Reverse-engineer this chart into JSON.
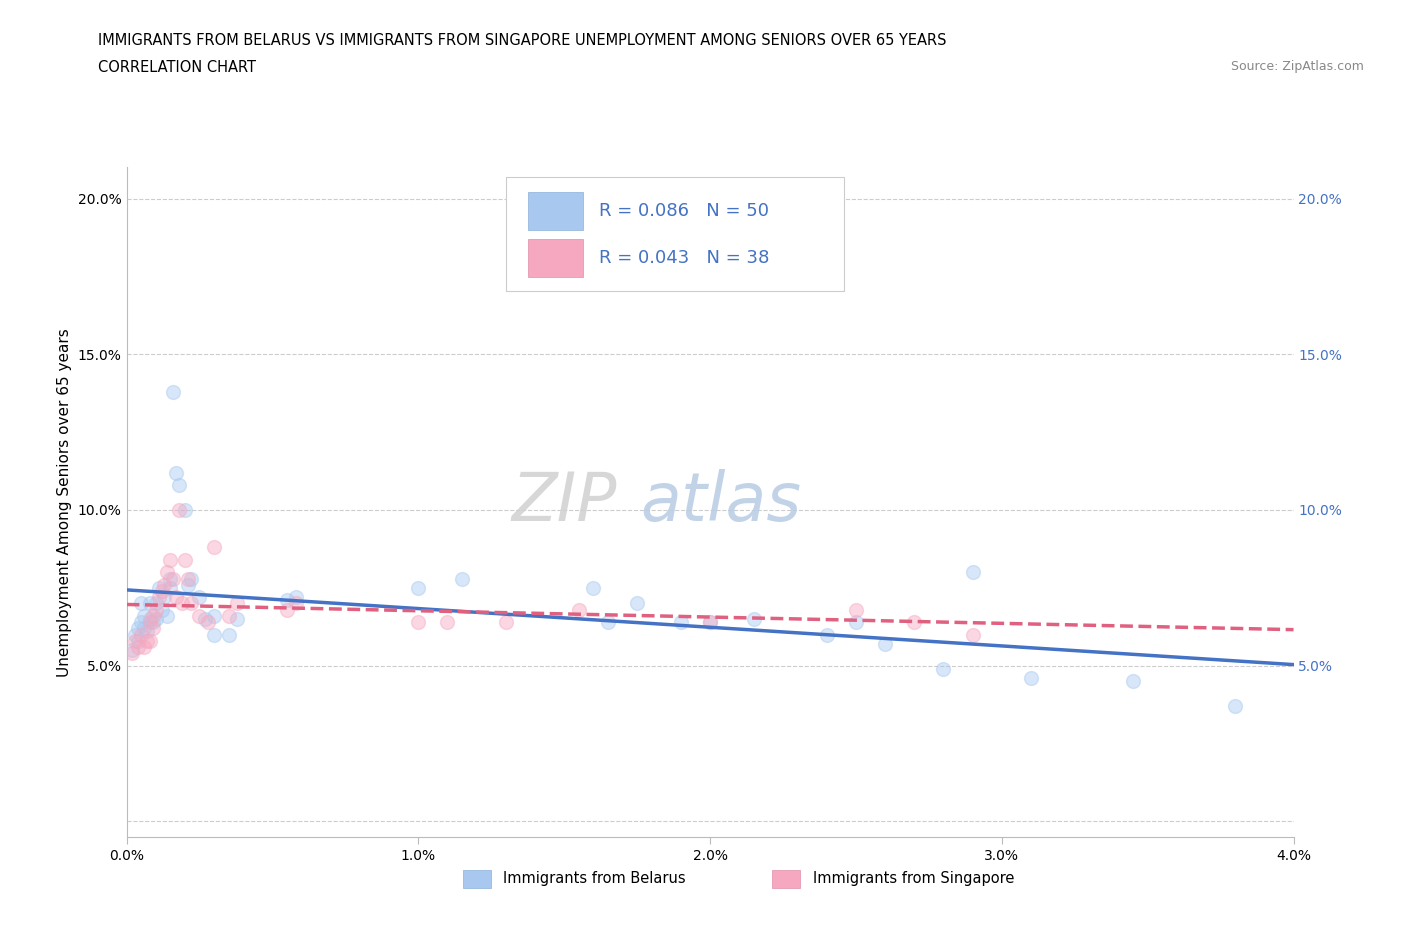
{
  "title_line1": "IMMIGRANTS FROM BELARUS VS IMMIGRANTS FROM SINGAPORE UNEMPLOYMENT AMONG SENIORS OVER 65 YEARS",
  "title_line2": "CORRELATION CHART",
  "source_text": "Source: ZipAtlas.com",
  "ylabel": "Unemployment Among Seniors over 65 years",
  "watermark_part1": "ZIP",
  "watermark_part2": "atlas",
  "xlim": [
    0.0,
    0.04
  ],
  "ylim": [
    -0.005,
    0.21
  ],
  "xticks": [
    0.0,
    0.01,
    0.02,
    0.03,
    0.04
  ],
  "xticklabels": [
    "0.0%",
    "1.0%",
    "2.0%",
    "3.0%",
    "4.0%"
  ],
  "yticks": [
    0.0,
    0.05,
    0.1,
    0.15,
    0.2
  ],
  "yticklabels": [
    "",
    "5.0%",
    "10.0%",
    "15.0%",
    "20.0%"
  ],
  "grid_color": "#cccccc",
  "background_color": "#ffffff",
  "belarus_color": "#a8c8f0",
  "singapore_color": "#f5a8c0",
  "belarus_line_color": "#4472c4",
  "singapore_line_color": "#e06080",
  "legend_R_belarus": "R = 0.086",
  "legend_N_belarus": "N = 50",
  "legend_R_singapore": "R = 0.043",
  "legend_N_singapore": "N = 38",
  "belarus_x": [
    0.0002,
    0.0003,
    0.0004,
    0.0004,
    0.0005,
    0.0005,
    0.0006,
    0.0006,
    0.0007,
    0.0008,
    0.0008,
    0.0009,
    0.001,
    0.001,
    0.0011,
    0.0012,
    0.0013,
    0.0014,
    0.0015,
    0.0015,
    0.0016,
    0.0017,
    0.0018,
    0.002,
    0.0021,
    0.0022,
    0.0025,
    0.0027,
    0.003,
    0.003,
    0.0035,
    0.0038,
    0.0055,
    0.0058,
    0.01,
    0.0115,
    0.016,
    0.0165,
    0.0175,
    0.019,
    0.02,
    0.0215,
    0.024,
    0.025,
    0.026,
    0.028,
    0.029,
    0.031,
    0.0345,
    0.038
  ],
  "belarus_y": [
    0.055,
    0.06,
    0.058,
    0.062,
    0.064,
    0.07,
    0.062,
    0.066,
    0.061,
    0.065,
    0.07,
    0.064,
    0.065,
    0.07,
    0.075,
    0.068,
    0.072,
    0.066,
    0.075,
    0.078,
    0.138,
    0.112,
    0.108,
    0.1,
    0.076,
    0.078,
    0.072,
    0.065,
    0.06,
    0.066,
    0.06,
    0.065,
    0.071,
    0.072,
    0.075,
    0.078,
    0.075,
    0.064,
    0.07,
    0.064,
    0.064,
    0.065,
    0.06,
    0.064,
    0.057,
    0.049,
    0.08,
    0.046,
    0.045,
    0.037
  ],
  "singapore_x": [
    0.0002,
    0.0003,
    0.0004,
    0.0005,
    0.0006,
    0.0007,
    0.0008,
    0.0008,
    0.0009,
    0.0009,
    0.001,
    0.0011,
    0.0012,
    0.0013,
    0.0014,
    0.0015,
    0.0016,
    0.0017,
    0.0018,
    0.0019,
    0.002,
    0.0021,
    0.0022,
    0.0025,
    0.0028,
    0.003,
    0.0035,
    0.0038,
    0.0055,
    0.0058,
    0.01,
    0.011,
    0.013,
    0.0155,
    0.02,
    0.025,
    0.027,
    0.029
  ],
  "singapore_y": [
    0.054,
    0.058,
    0.056,
    0.06,
    0.056,
    0.058,
    0.064,
    0.058,
    0.062,
    0.066,
    0.068,
    0.072,
    0.074,
    0.076,
    0.08,
    0.084,
    0.078,
    0.072,
    0.1,
    0.07,
    0.084,
    0.078,
    0.07,
    0.066,
    0.064,
    0.088,
    0.066,
    0.07,
    0.068,
    0.07,
    0.064,
    0.064,
    0.064,
    0.068,
    0.064,
    0.068,
    0.064,
    0.06
  ],
  "title_fontsize": 10.5,
  "axis_label_fontsize": 11,
  "tick_fontsize": 10,
  "legend_fontsize": 13,
  "watermark_fontsize": 48,
  "marker_size": 100,
  "marker_alpha": 0.45,
  "line_width": 2.5
}
